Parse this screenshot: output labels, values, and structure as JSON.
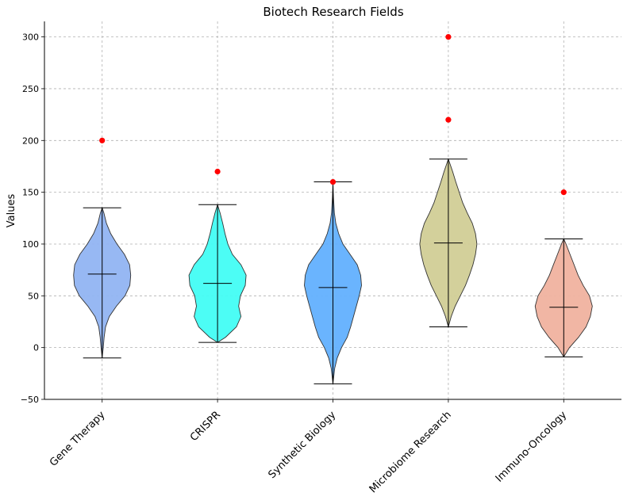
{
  "chart_data": {
    "type": "violin",
    "title": "Biotech Research Fields",
    "xlabel": "",
    "ylabel": "Values",
    "ylim": [
      -50,
      315
    ],
    "yticks": [
      -50,
      0,
      50,
      100,
      150,
      200,
      250,
      300
    ],
    "grid": true,
    "categories": [
      "Gene Therapy",
      "CRISPR",
      "Synthetic Biology",
      "Microbiome Research",
      "Immuno-Oncology"
    ],
    "series": [
      {
        "category": "Gene Therapy",
        "color": "#91b4f2",
        "min": -10,
        "max": 135,
        "median": 71,
        "outliers": [
          200
        ],
        "profile": [
          [
            -10,
            0.0
          ],
          [
            0,
            0.04
          ],
          [
            10,
            0.07
          ],
          [
            20,
            0.12
          ],
          [
            30,
            0.25
          ],
          [
            40,
            0.5
          ],
          [
            50,
            0.8
          ],
          [
            60,
            0.97
          ],
          [
            70,
            1.0
          ],
          [
            80,
            0.96
          ],
          [
            90,
            0.78
          ],
          [
            100,
            0.52
          ],
          [
            110,
            0.3
          ],
          [
            120,
            0.15
          ],
          [
            130,
            0.06
          ],
          [
            135,
            0.0
          ]
        ]
      },
      {
        "category": "CRISPR",
        "color": "#42fdf4",
        "min": 5,
        "max": 138,
        "median": 62,
        "outliers": [
          170
        ],
        "profile": [
          [
            5,
            0.0
          ],
          [
            10,
            0.28
          ],
          [
            20,
            0.66
          ],
          [
            30,
            0.82
          ],
          [
            40,
            0.74
          ],
          [
            50,
            0.8
          ],
          [
            60,
            0.97
          ],
          [
            70,
            1.0
          ],
          [
            80,
            0.82
          ],
          [
            90,
            0.52
          ],
          [
            100,
            0.36
          ],
          [
            110,
            0.26
          ],
          [
            120,
            0.18
          ],
          [
            130,
            0.09
          ],
          [
            138,
            0.0
          ]
        ]
      },
      {
        "category": "Synthetic Biology",
        "color": "#62b0fe",
        "min": -35,
        "max": 160,
        "median": 58,
        "outliers": [
          160
        ],
        "profile": [
          [
            -35,
            0.0
          ],
          [
            -20,
            0.06
          ],
          [
            -10,
            0.15
          ],
          [
            0,
            0.3
          ],
          [
            10,
            0.5
          ],
          [
            20,
            0.62
          ],
          [
            30,
            0.72
          ],
          [
            40,
            0.82
          ],
          [
            50,
            0.92
          ],
          [
            60,
            1.0
          ],
          [
            70,
            0.97
          ],
          [
            80,
            0.85
          ],
          [
            90,
            0.6
          ],
          [
            100,
            0.35
          ],
          [
            110,
            0.2
          ],
          [
            120,
            0.1
          ],
          [
            130,
            0.05
          ],
          [
            145,
            0.02
          ],
          [
            160,
            0.0
          ]
        ]
      },
      {
        "category": "Microbiome Research",
        "color": "#d1cd96",
        "min": 20,
        "max": 182,
        "median": 101,
        "outliers": [
          220,
          300
        ],
        "profile": [
          [
            20,
            0.0
          ],
          [
            30,
            0.1
          ],
          [
            40,
            0.24
          ],
          [
            50,
            0.42
          ],
          [
            60,
            0.6
          ],
          [
            70,
            0.74
          ],
          [
            80,
            0.86
          ],
          [
            90,
            0.95
          ],
          [
            100,
            1.0
          ],
          [
            110,
            0.95
          ],
          [
            120,
            0.84
          ],
          [
            130,
            0.66
          ],
          [
            140,
            0.5
          ],
          [
            150,
            0.38
          ],
          [
            160,
            0.26
          ],
          [
            170,
            0.15
          ],
          [
            182,
            0.0
          ]
        ]
      },
      {
        "category": "Immuno-Oncology",
        "color": "#f0b29f",
        "min": -9,
        "max": 105,
        "median": 39,
        "outliers": [
          150
        ],
        "profile": [
          [
            -9,
            0.0
          ],
          [
            0,
            0.2
          ],
          [
            10,
            0.52
          ],
          [
            20,
            0.78
          ],
          [
            30,
            0.93
          ],
          [
            40,
            1.0
          ],
          [
            50,
            0.9
          ],
          [
            60,
            0.68
          ],
          [
            70,
            0.5
          ],
          [
            80,
            0.36
          ],
          [
            90,
            0.22
          ],
          [
            100,
            0.08
          ],
          [
            105,
            0.0
          ]
        ]
      }
    ]
  }
}
